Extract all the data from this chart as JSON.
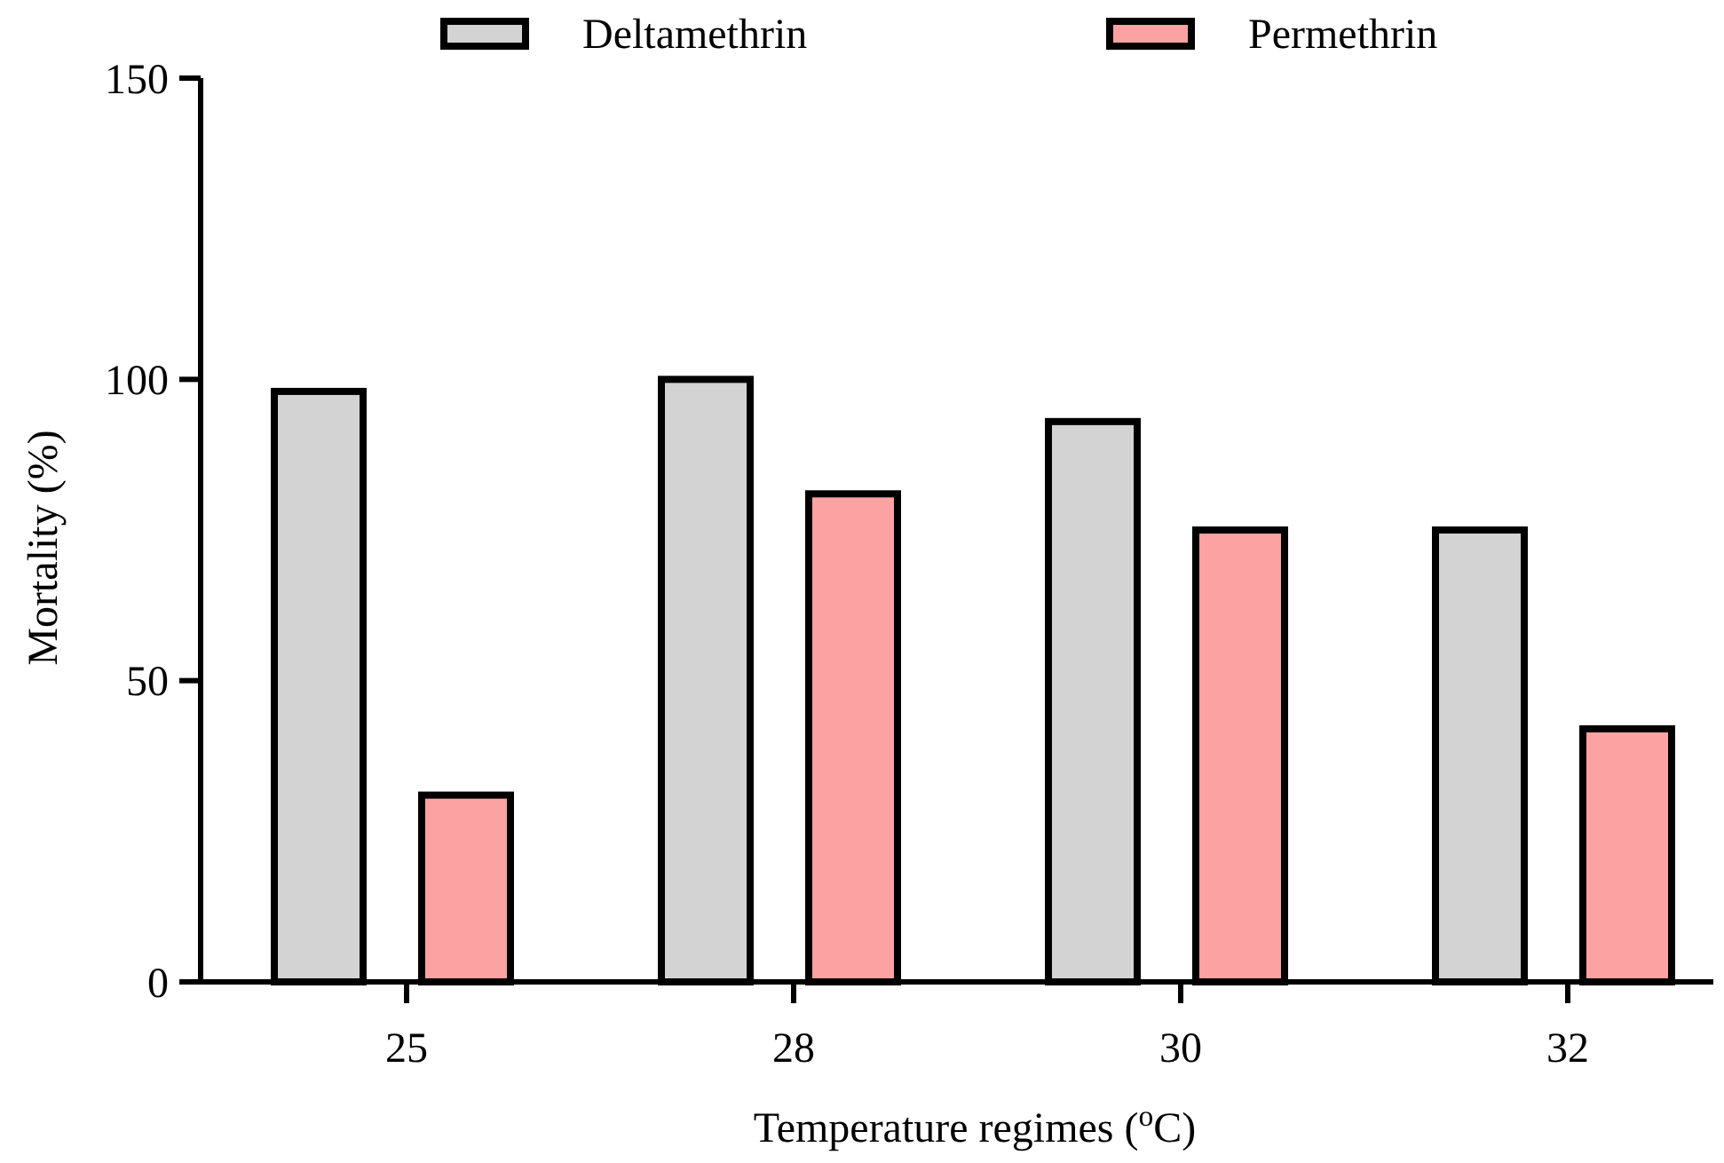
{
  "chart_data": {
    "type": "bar",
    "xlabel": "Temperature regimes ($^{o}$C)",
    "ylabel": "Mortality (%)",
    "categories": [
      "25",
      "28",
      "30",
      "32"
    ],
    "series": [
      {
        "name": "Deltamethrin",
        "color": "#d3d3d3",
        "values": [
          98,
          100,
          93,
          75
        ]
      },
      {
        "name": "Permethrin",
        "color": "#fca2a2",
        "values": [
          31,
          81,
          75,
          42
        ]
      }
    ],
    "ylim": [
      0,
      150
    ],
    "yticks": [
      0,
      50,
      100,
      150
    ],
    "grid": false,
    "legend": "top"
  }
}
